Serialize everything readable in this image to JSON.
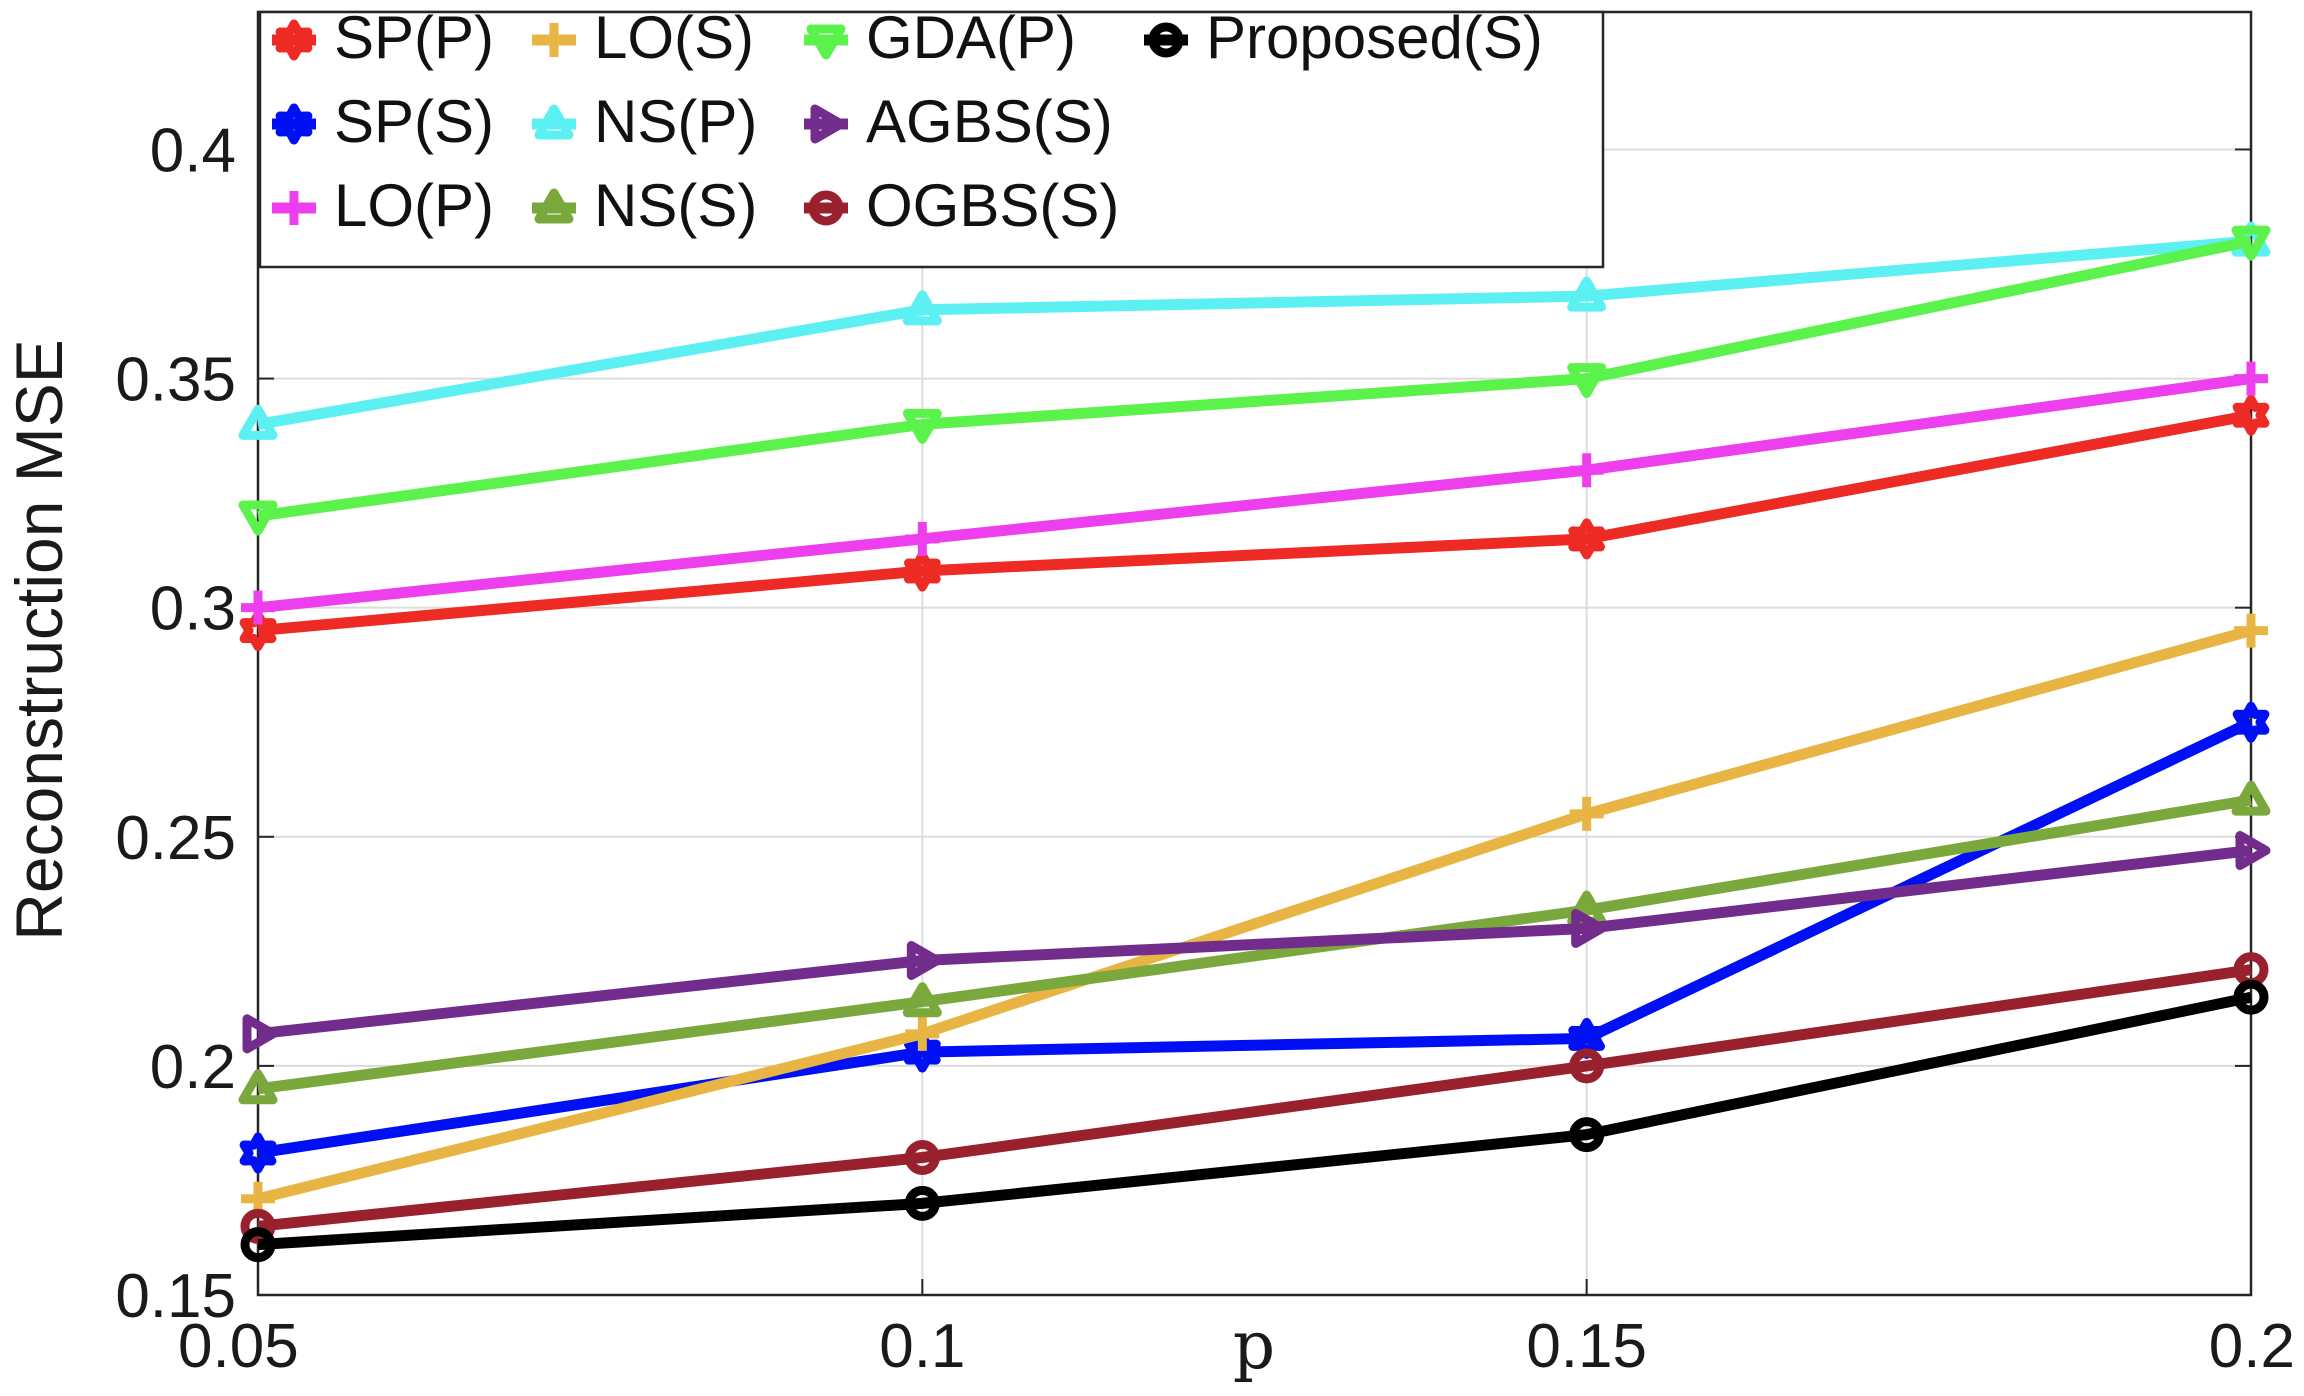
{
  "chart_data": {
    "type": "line",
    "title": "",
    "xlabel": "p",
    "ylabel": "Reconstruction MSE",
    "x": [
      0.05,
      0.1,
      0.15,
      0.2
    ],
    "xlim": [
      0.05,
      0.2
    ],
    "ylim": [
      0.15,
      0.43
    ],
    "xticks": [
      "0.05",
      "0.1",
      "0.15",
      "0.2"
    ],
    "yticks": [
      "0.15",
      "0.2",
      "0.25",
      "0.3",
      "0.35",
      "0.4"
    ],
    "grid": true,
    "legend_position": "top-left",
    "series": [
      {
        "name": "SP(P)",
        "color": "#ee2a24",
        "marker": "hexagram",
        "values": [
          0.295,
          0.308,
          0.315,
          0.342
        ]
      },
      {
        "name": "SP(S)",
        "color": "#0010f5",
        "marker": "hexagram",
        "values": [
          0.181,
          0.203,
          0.206,
          0.275
        ]
      },
      {
        "name": "LO(P)",
        "color": "#ee3fee",
        "marker": "plus",
        "values": [
          0.3,
          0.315,
          0.33,
          0.35
        ]
      },
      {
        "name": "LO(S)",
        "color": "#e8b545",
        "marker": "plus",
        "values": [
          0.171,
          0.207,
          0.255,
          0.295
        ]
      },
      {
        "name": "NS(P)",
        "color": "#5cf0f2",
        "marker": "triangle-up",
        "values": [
          0.34,
          0.365,
          0.368,
          0.38
        ]
      },
      {
        "name": "NS(S)",
        "color": "#7aa83c",
        "marker": "triangle-up",
        "values": [
          0.195,
          0.214,
          0.234,
          0.258
        ]
      },
      {
        "name": "GDA(P)",
        "color": "#5cf24c",
        "marker": "triangle-down",
        "values": [
          0.32,
          0.34,
          0.35,
          0.38
        ]
      },
      {
        "name": "AGBS(S)",
        "color": "#722c8c",
        "marker": "triangle-right",
        "values": [
          0.207,
          0.223,
          0.23,
          0.247
        ]
      },
      {
        "name": "OGBS(S)",
        "color": "#98212d",
        "marker": "circle",
        "values": [
          0.165,
          0.18,
          0.2,
          0.221
        ]
      },
      {
        "name": "Proposed(S)",
        "color": "#000000",
        "marker": "circle",
        "values": [
          0.161,
          0.17,
          0.185,
          0.215
        ]
      }
    ],
    "legend_layout": [
      [
        "SP(P)",
        "LO(S)",
        "GDA(P)",
        "Proposed(S)"
      ],
      [
        "SP(S)",
        "NS(P)",
        "AGBS(S)",
        null
      ],
      [
        "LO(P)",
        "NS(S)",
        "OGBS(S)",
        null
      ]
    ]
  }
}
